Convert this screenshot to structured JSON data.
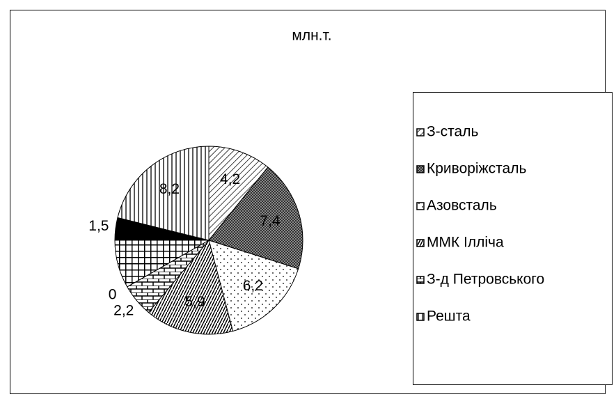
{
  "chart_data": {
    "type": "pie",
    "title": "млн.т.",
    "categories": [
      "З-сталь",
      "Криворіжсталь",
      "Азовсталь",
      "ММК Ілліча",
      "З-д Петровського",
      null,
      null,
      null,
      "Решта"
    ],
    "values": [
      4.2,
      7.4,
      6.2,
      5.9,
      2.2,
      0,
      3.2,
      1.5,
      8.2
    ],
    "value_labels": [
      "4,2",
      "7,4",
      "6,2",
      "5,9",
      "2,2",
      "0",
      null,
      "1,5",
      "8,2"
    ],
    "patterns": [
      "diag",
      "cross",
      "dots",
      "hash",
      "brick",
      "none",
      "grid",
      "solid",
      "vlines"
    ],
    "legend": "right"
  }
}
